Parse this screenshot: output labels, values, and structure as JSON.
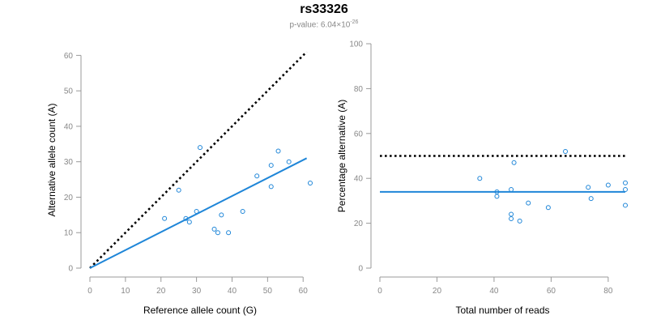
{
  "title": "rs33326",
  "subtitle": {
    "prefix": "p-value: 6.04×10",
    "exponent": "-26"
  },
  "colors": {
    "points": "#1f86d8",
    "fit": "#1f86d8",
    "expected": "#000000",
    "axis": "#999999"
  },
  "chart_data": [
    {
      "type": "scatter",
      "xlabel": "Reference allele count (G)",
      "ylabel": "Alternative allele count (A)",
      "xlim": [
        0,
        62
      ],
      "ylim": [
        0,
        61
      ],
      "xticks": [
        0,
        10,
        20,
        30,
        40,
        50,
        60
      ],
      "yticks": [
        0,
        10,
        20,
        30,
        40,
        50,
        60
      ],
      "points": [
        {
          "x": 21,
          "y": 14
        },
        {
          "x": 25,
          "y": 22
        },
        {
          "x": 27,
          "y": 14
        },
        {
          "x": 28,
          "y": 13
        },
        {
          "x": 30,
          "y": 16
        },
        {
          "x": 31,
          "y": 34
        },
        {
          "x": 35,
          "y": 11
        },
        {
          "x": 36,
          "y": 10
        },
        {
          "x": 37,
          "y": 15
        },
        {
          "x": 39,
          "y": 10
        },
        {
          "x": 43,
          "y": 16
        },
        {
          "x": 47,
          "y": 26
        },
        {
          "x": 51,
          "y": 29
        },
        {
          "x": 51,
          "y": 23
        },
        {
          "x": 53,
          "y": 33
        },
        {
          "x": 56,
          "y": 30
        },
        {
          "x": 62,
          "y": 24
        }
      ],
      "fit_line": [
        {
          "x": 0,
          "y": 0
        },
        {
          "x": 61,
          "y": 31
        }
      ],
      "expected_line": [
        {
          "x": 0,
          "y": 0
        },
        {
          "x": 61,
          "y": 61
        }
      ]
    },
    {
      "type": "scatter",
      "xlabel": "Total number of reads",
      "ylabel": "Percentage alternative (A)",
      "xlim": [
        0,
        86
      ],
      "ylim": [
        0,
        100
      ],
      "xticks": [
        0,
        20,
        40,
        60,
        80
      ],
      "yticks": [
        0,
        20,
        40,
        60,
        80,
        100
      ],
      "points": [
        {
          "x": 35,
          "y": 40
        },
        {
          "x": 41,
          "y": 34
        },
        {
          "x": 41,
          "y": 32
        },
        {
          "x": 46,
          "y": 35
        },
        {
          "x": 46,
          "y": 24
        },
        {
          "x": 46,
          "y": 22
        },
        {
          "x": 47,
          "y": 47
        },
        {
          "x": 49,
          "y": 21
        },
        {
          "x": 52,
          "y": 29
        },
        {
          "x": 59,
          "y": 27
        },
        {
          "x": 65,
          "y": 52
        },
        {
          "x": 73,
          "y": 36
        },
        {
          "x": 74,
          "y": 31
        },
        {
          "x": 80,
          "y": 37
        },
        {
          "x": 86,
          "y": 38
        },
        {
          "x": 86,
          "y": 35
        },
        {
          "x": 86,
          "y": 28
        }
      ],
      "fit_line": [
        {
          "x": 0,
          "y": 34
        },
        {
          "x": 86,
          "y": 34
        }
      ],
      "expected_line": [
        {
          "x": 0,
          "y": 50
        },
        {
          "x": 86,
          "y": 50
        }
      ]
    }
  ]
}
